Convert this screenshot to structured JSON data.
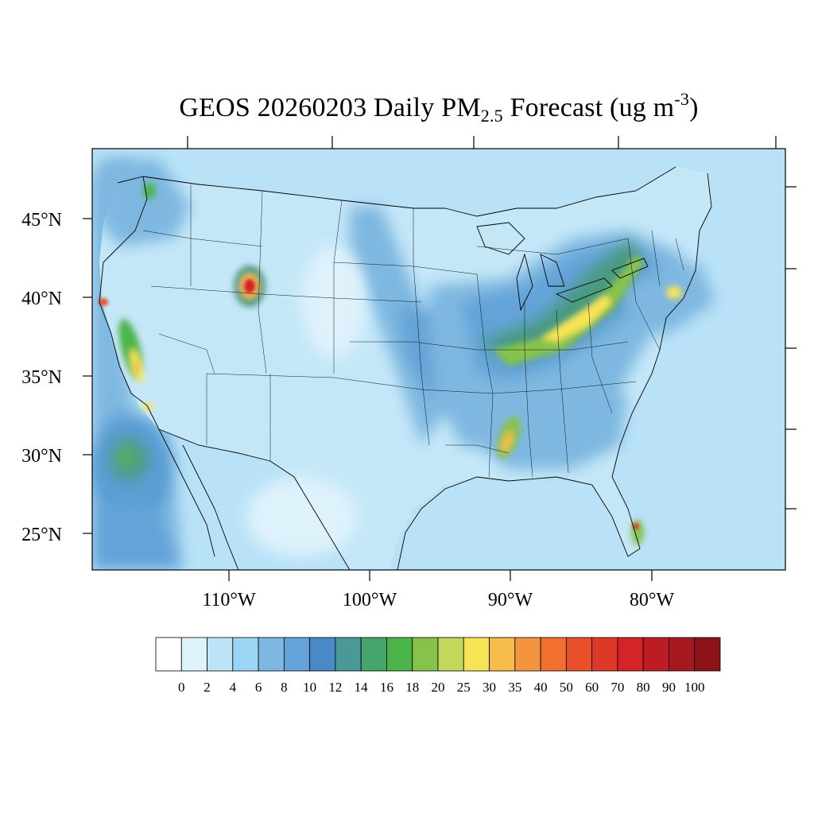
{
  "title": {
    "prefix": "GEOS 20260203 Daily PM",
    "subscript": "2.5",
    "middle": " Forecast (ug m",
    "superscript": "-3",
    "suffix": ")"
  },
  "map": {
    "projection": "lambert-conformal",
    "region": "contiguous-united-states",
    "lat_labels": [
      "45°N",
      "40°N",
      "35°N",
      "30°N",
      "25°N"
    ],
    "lon_labels": [
      "110°W",
      "100°W",
      "90°W",
      "80°W"
    ],
    "ocean_color": "#b9e2f7",
    "land_color": "#c4e7f8"
  },
  "hotspots": [
    {
      "name": "idaho-wyoming",
      "level": "70-100"
    },
    {
      "name": "northern-california-coast",
      "level": "50-80"
    },
    {
      "name": "central-valley-california",
      "level": "25-35"
    },
    {
      "name": "ohio-valley",
      "level": "20-30"
    },
    {
      "name": "mississippi",
      "level": "30-35"
    },
    {
      "name": "south-florida",
      "level": "60-80"
    },
    {
      "name": "new-york-new-jersey",
      "level": "25-30"
    }
  ],
  "colorbar": {
    "labels": [
      "0",
      "2",
      "4",
      "6",
      "8",
      "10",
      "12",
      "14",
      "16",
      "18",
      "20",
      "25",
      "30",
      "35",
      "40",
      "50",
      "60",
      "70",
      "80",
      "90",
      "100"
    ],
    "colors": [
      "#ffffff",
      "#def2fb",
      "#bde4f6",
      "#9ad5f3",
      "#7eb8e0",
      "#64a3d8",
      "#4a88c8",
      "#4a9898",
      "#45a56a",
      "#4cb54a",
      "#87c34b",
      "#c3d75a",
      "#f7e456",
      "#f7bc4a",
      "#f4953d",
      "#f2702f",
      "#e84f2b",
      "#de3828",
      "#d42428",
      "#bb1d23",
      "#a5181f",
      "#8c1419"
    ]
  }
}
